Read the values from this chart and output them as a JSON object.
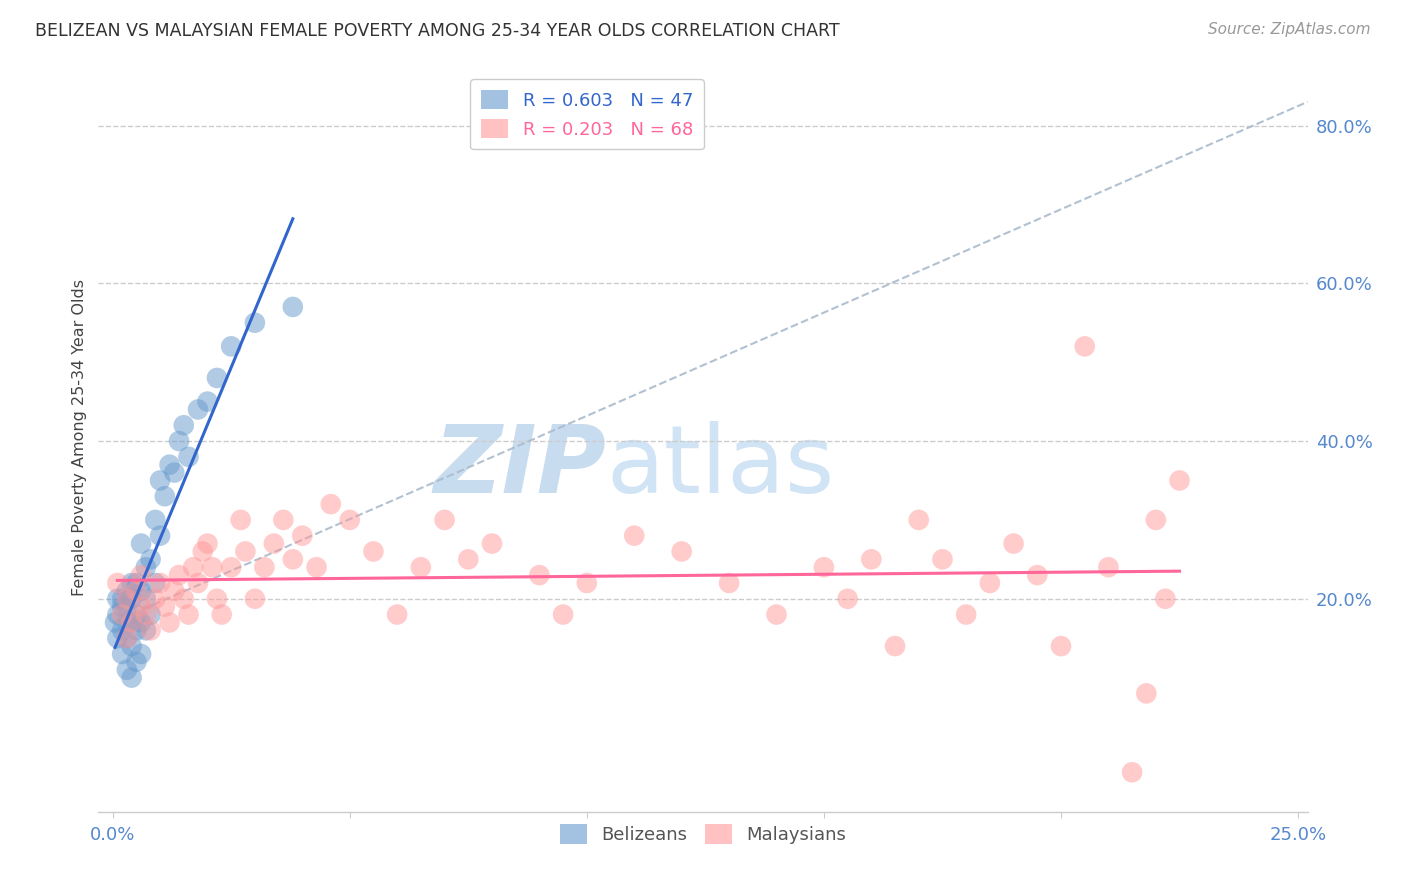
{
  "title": "BELIZEAN VS MALAYSIAN FEMALE POVERTY AMONG 25-34 YEAR OLDS CORRELATION CHART",
  "source": "Source: ZipAtlas.com",
  "ylabel": "Female Poverty Among 25-34 Year Olds",
  "xlim": [
    -0.003,
    0.252
  ],
  "ylim": [
    -0.07,
    0.88
  ],
  "xticks": [
    0.0,
    0.05,
    0.1,
    0.15,
    0.2,
    0.25
  ],
  "xtick_labels": [
    "0.0%",
    "",
    "",
    "",
    "",
    "25.0%"
  ],
  "ytick_positions": [
    0.2,
    0.4,
    0.6,
    0.8
  ],
  "ytick_labels_right": [
    "20.0%",
    "40.0%",
    "60.0%",
    "80.0%"
  ],
  "belizean_R": "0.603",
  "belizean_N": "47",
  "malaysian_R": "0.203",
  "malaysian_N": "68",
  "belizean_color": "#6699CC",
  "malaysian_color": "#FF9999",
  "belizean_line_color": "#3366CC",
  "malaysian_line_color": "#FF6699",
  "watermark_zip_color": "#C8DCF0",
  "watermark_atlas_color": "#D0E4F5",
  "legend_belizean_label": "Belizeans",
  "legend_malaysian_label": "Malaysians",
  "belizean_x": [
    0.0005,
    0.001,
    0.001,
    0.001,
    0.002,
    0.002,
    0.002,
    0.002,
    0.003,
    0.003,
    0.003,
    0.003,
    0.003,
    0.004,
    0.004,
    0.004,
    0.004,
    0.004,
    0.005,
    0.005,
    0.005,
    0.005,
    0.006,
    0.006,
    0.006,
    0.006,
    0.007,
    0.007,
    0.007,
    0.008,
    0.008,
    0.009,
    0.009,
    0.01,
    0.01,
    0.011,
    0.012,
    0.013,
    0.014,
    0.015,
    0.016,
    0.018,
    0.02,
    0.022,
    0.025,
    0.03,
    0.038
  ],
  "belizean_y": [
    0.17,
    0.15,
    0.18,
    0.2,
    0.13,
    0.16,
    0.19,
    0.2,
    0.11,
    0.15,
    0.17,
    0.19,
    0.21,
    0.1,
    0.14,
    0.17,
    0.2,
    0.22,
    0.12,
    0.16,
    0.18,
    0.22,
    0.13,
    0.17,
    0.21,
    0.27,
    0.16,
    0.2,
    0.24,
    0.18,
    0.25,
    0.22,
    0.3,
    0.28,
    0.35,
    0.33,
    0.37,
    0.36,
    0.4,
    0.42,
    0.38,
    0.44,
    0.45,
    0.48,
    0.52,
    0.55,
    0.57
  ],
  "malaysian_x": [
    0.001,
    0.002,
    0.003,
    0.003,
    0.004,
    0.005,
    0.006,
    0.006,
    0.007,
    0.008,
    0.009,
    0.01,
    0.011,
    0.012,
    0.013,
    0.014,
    0.015,
    0.016,
    0.017,
    0.018,
    0.019,
    0.02,
    0.021,
    0.022,
    0.023,
    0.025,
    0.027,
    0.028,
    0.03,
    0.032,
    0.034,
    0.036,
    0.038,
    0.04,
    0.043,
    0.046,
    0.05,
    0.055,
    0.06,
    0.065,
    0.07,
    0.075,
    0.08,
    0.09,
    0.095,
    0.1,
    0.11,
    0.12,
    0.13,
    0.14,
    0.15,
    0.155,
    0.16,
    0.165,
    0.17,
    0.175,
    0.18,
    0.185,
    0.19,
    0.195,
    0.2,
    0.205,
    0.21,
    0.215,
    0.218,
    0.22,
    0.222,
    0.225
  ],
  "malaysian_y": [
    0.22,
    0.18,
    0.15,
    0.2,
    0.17,
    0.21,
    0.19,
    0.23,
    0.18,
    0.16,
    0.2,
    0.22,
    0.19,
    0.17,
    0.21,
    0.23,
    0.2,
    0.18,
    0.24,
    0.22,
    0.26,
    0.27,
    0.24,
    0.2,
    0.18,
    0.24,
    0.3,
    0.26,
    0.2,
    0.24,
    0.27,
    0.3,
    0.25,
    0.28,
    0.24,
    0.32,
    0.3,
    0.26,
    0.18,
    0.24,
    0.3,
    0.25,
    0.27,
    0.23,
    0.18,
    0.22,
    0.28,
    0.26,
    0.22,
    0.18,
    0.24,
    0.2,
    0.25,
    0.14,
    0.3,
    0.25,
    0.18,
    0.22,
    0.27,
    0.23,
    0.14,
    0.52,
    0.24,
    -0.02,
    0.08,
    0.3,
    0.2,
    0.35
  ],
  "dashed_line_x": [
    0.0,
    0.252
  ],
  "dashed_line_y": [
    0.17,
    0.83
  ]
}
